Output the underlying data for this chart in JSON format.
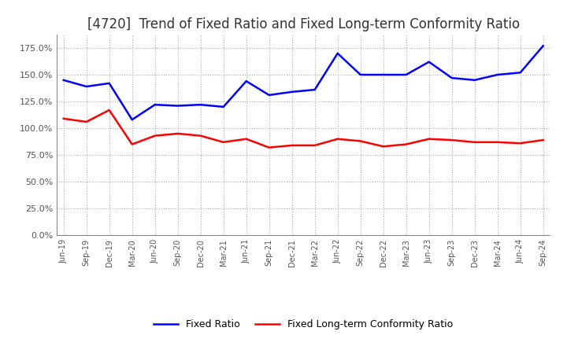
{
  "title": "[4720]  Trend of Fixed Ratio and Fixed Long-term Conformity Ratio",
  "x_labels": [
    "Jun-19",
    "Sep-19",
    "Dec-19",
    "Mar-20",
    "Jun-20",
    "Sep-20",
    "Dec-20",
    "Mar-21",
    "Jun-21",
    "Sep-21",
    "Dec-21",
    "Mar-22",
    "Jun-22",
    "Sep-22",
    "Dec-22",
    "Mar-23",
    "Jun-23",
    "Sep-23",
    "Dec-23",
    "Mar-24",
    "Jun-24",
    "Sep-24"
  ],
  "fixed_ratio": [
    145.0,
    139.0,
    142.0,
    108.0,
    122.0,
    121.0,
    122.0,
    120.0,
    144.0,
    131.0,
    134.0,
    136.0,
    170.0,
    150.0,
    150.0,
    150.0,
    162.0,
    147.0,
    145.0,
    150.0,
    152.0,
    177.0
  ],
  "fixed_lt_ratio": [
    109.0,
    106.0,
    117.0,
    85.0,
    93.0,
    95.0,
    93.0,
    87.0,
    90.0,
    82.0,
    84.0,
    84.0,
    90.0,
    88.0,
    83.0,
    85.0,
    90.0,
    89.0,
    87.0,
    87.0,
    86.0,
    89.0
  ],
  "fixed_ratio_color": "#0000FF",
  "fixed_lt_ratio_color": "#FF0000",
  "background_color": "#FFFFFF",
  "grid_color": "#AAAAAA",
  "ylim": [
    0,
    187.5
  ],
  "yticks": [
    0,
    25,
    50,
    75,
    100,
    125,
    150,
    175
  ],
  "title_fontsize": 12,
  "legend_labels": [
    "Fixed Ratio",
    "Fixed Long-term Conformity Ratio"
  ]
}
